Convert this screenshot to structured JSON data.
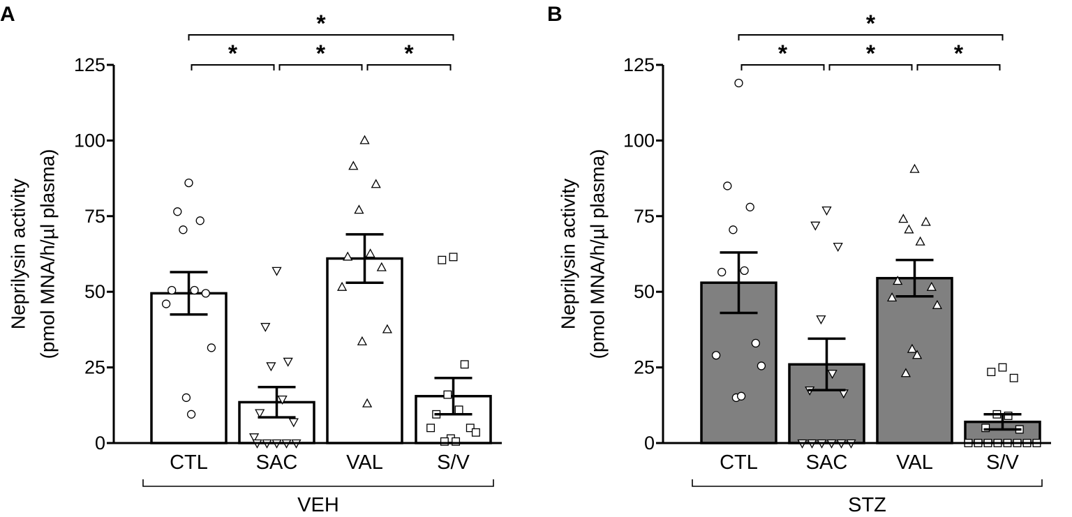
{
  "chart_data": [
    {
      "panel": "A",
      "type": "bar",
      "ylabel_line1": "Neprilysin activity",
      "ylabel_line2": "(pmol MNA/h/µl plasma)",
      "ylim": [
        0,
        125
      ],
      "yticks": [
        0,
        25,
        50,
        75,
        100,
        125
      ],
      "categories": [
        "CTL",
        "SAC",
        "VAL",
        "S/V"
      ],
      "group_label": "VEH",
      "bar_color": "#ffffff",
      "values": [
        49.5,
        13.5,
        61,
        15.5
      ],
      "sem": [
        7,
        5,
        8,
        6
      ],
      "points": [
        [
          86,
          76.5,
          73.5,
          70.5,
          50.5,
          50.5,
          49.5,
          46,
          31.5,
          15,
          9.5
        ],
        [
          57,
          38.5,
          27,
          25.5,
          14.5,
          10,
          7,
          2,
          0,
          0,
          0,
          0,
          0
        ],
        [
          100,
          91.5,
          85.5,
          77,
          62.5,
          61.5,
          58,
          51.5,
          37.5,
          33.5,
          13
        ],
        [
          61.5,
          60.5,
          26,
          16,
          11,
          9.5,
          5,
          5,
          3.5,
          1.5,
          0.5,
          0.5
        ]
      ],
      "markers": [
        "circle",
        "triangle-down",
        "triangle-up",
        "square"
      ],
      "significance": [
        {
          "from": 0,
          "to": 1,
          "label": "*"
        },
        {
          "from": 1,
          "to": 2,
          "label": "*"
        },
        {
          "from": 2,
          "to": 3,
          "label": "*"
        },
        {
          "from": 0,
          "to": 3,
          "label": "*"
        }
      ]
    },
    {
      "panel": "B",
      "type": "bar",
      "ylabel_line1": "Neprilysin activity",
      "ylabel_line2": "(pmol MNA/h/µl plasma)",
      "ylim": [
        0,
        125
      ],
      "yticks": [
        0,
        25,
        50,
        75,
        100,
        125
      ],
      "categories": [
        "CTL",
        "SAC",
        "VAL",
        "S/V"
      ],
      "group_label": "STZ",
      "bar_color": "#808080",
      "values": [
        53,
        26,
        54.5,
        7
      ],
      "sem": [
        10,
        8.5,
        6,
        2.5
      ],
      "points": [
        [
          119,
          85,
          78,
          70.5,
          57,
          56.5,
          33,
          29,
          25.5,
          15,
          15.5
        ],
        [
          77,
          72,
          65,
          41,
          23,
          17.5,
          16.5,
          0,
          0,
          0,
          0,
          0,
          0
        ],
        [
          90.5,
          74,
          73,
          70.5,
          66.5,
          53.5,
          51.5,
          48,
          45.5,
          31,
          29,
          23
        ],
        [
          25,
          23.5,
          21.5,
          9.5,
          9,
          5,
          4.5,
          0,
          0,
          0,
          0,
          0,
          0,
          0,
          0
        ]
      ],
      "markers": [
        "circle",
        "triangle-down",
        "triangle-up",
        "square"
      ],
      "significance": [
        {
          "from": 0,
          "to": 1,
          "label": "*"
        },
        {
          "from": 1,
          "to": 2,
          "label": "*"
        },
        {
          "from": 2,
          "to": 3,
          "label": "*"
        },
        {
          "from": 0,
          "to": 3,
          "label": "*"
        }
      ]
    }
  ]
}
